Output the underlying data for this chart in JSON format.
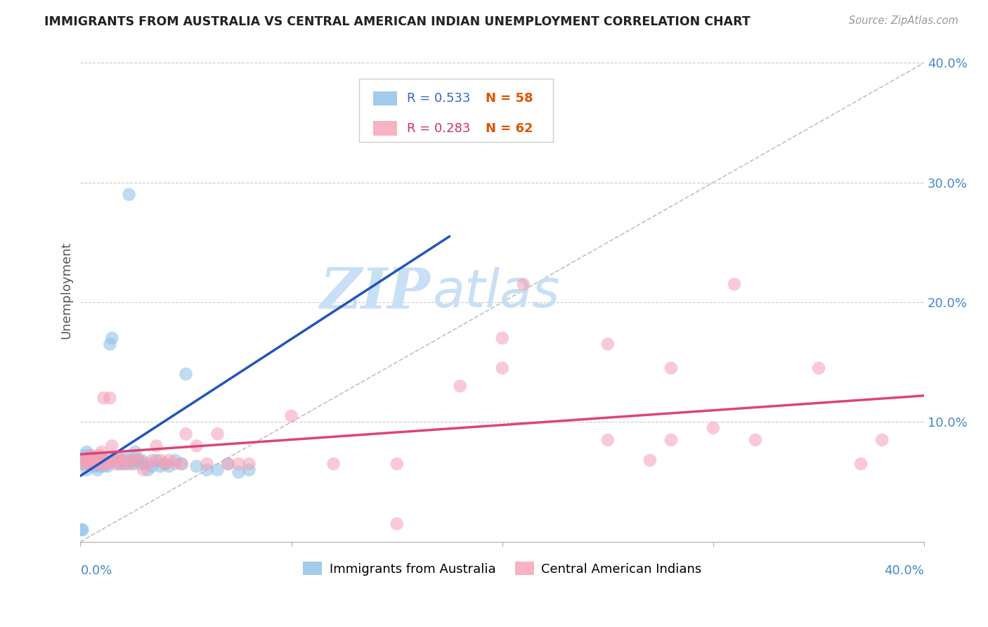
{
  "title": "IMMIGRANTS FROM AUSTRALIA VS CENTRAL AMERICAN INDIAN UNEMPLOYMENT CORRELATION CHART",
  "source": "Source: ZipAtlas.com",
  "ylabel": "Unemployment",
  "xlim": [
    0.0,
    0.4
  ],
  "ylim": [
    0.0,
    0.42
  ],
  "ytick_values": [
    0.1,
    0.2,
    0.3,
    0.4
  ],
  "ytick_labels": [
    "10.0%",
    "20.0%",
    "30.0%",
    "40.0%"
  ],
  "xtick_values": [
    0.0,
    0.1,
    0.2,
    0.3,
    0.4
  ],
  "grid_color": "#cccccc",
  "background_color": "#ffffff",
  "watermark_zip": "ZIP",
  "watermark_atlas": "atlas",
  "watermark_color": "#c8dff5",
  "legend_r1": "0.533",
  "legend_n1": "58",
  "legend_r2": "0.283",
  "legend_n2": "62",
  "blue_color": "#8bbfe8",
  "pink_color": "#f5a0b5",
  "trend_blue": "#2255bb",
  "trend_pink": "#dd4477",
  "diagonal_color": "#c0c0c0",
  "blue_label": "Immigrants from Australia",
  "pink_label": "Central American Indians",
  "aus_trend_x0": 0.0,
  "aus_trend_x1": 0.175,
  "aus_trend_y0": 0.055,
  "aus_trend_y1": 0.255,
  "cen_trend_x0": 0.0,
  "cen_trend_x1": 0.4,
  "cen_trend_y0": 0.073,
  "cen_trend_y1": 0.122,
  "australia_x": [
    0.001,
    0.002,
    0.002,
    0.003,
    0.003,
    0.004,
    0.004,
    0.005,
    0.005,
    0.006,
    0.006,
    0.007,
    0.007,
    0.008,
    0.008,
    0.009,
    0.009,
    0.01,
    0.01,
    0.011,
    0.011,
    0.012,
    0.013,
    0.013,
    0.014,
    0.015,
    0.016,
    0.017,
    0.018,
    0.019,
    0.02,
    0.021,
    0.022,
    0.023,
    0.024,
    0.025,
    0.026,
    0.027,
    0.028,
    0.029,
    0.03,
    0.032,
    0.034,
    0.036,
    0.038,
    0.04,
    0.042,
    0.045,
    0.048,
    0.05,
    0.055,
    0.06,
    0.065,
    0.07,
    0.075,
    0.08,
    0.001,
    0.0005
  ],
  "australia_y": [
    0.068,
    0.065,
    0.072,
    0.06,
    0.075,
    0.07,
    0.068,
    0.065,
    0.072,
    0.063,
    0.07,
    0.065,
    0.068,
    0.06,
    0.065,
    0.063,
    0.068,
    0.065,
    0.07,
    0.063,
    0.068,
    0.065,
    0.07,
    0.063,
    0.165,
    0.17,
    0.068,
    0.07,
    0.065,
    0.068,
    0.065,
    0.07,
    0.065,
    0.29,
    0.068,
    0.065,
    0.075,
    0.068,
    0.065,
    0.068,
    0.065,
    0.06,
    0.063,
    0.068,
    0.063,
    0.065,
    0.063,
    0.068,
    0.065,
    0.14,
    0.063,
    0.06,
    0.06,
    0.065,
    0.058,
    0.06,
    0.01,
    0.01
  ],
  "central_x": [
    0.001,
    0.002,
    0.003,
    0.004,
    0.005,
    0.005,
    0.006,
    0.007,
    0.008,
    0.009,
    0.01,
    0.01,
    0.011,
    0.012,
    0.013,
    0.014,
    0.015,
    0.016,
    0.017,
    0.018,
    0.019,
    0.02,
    0.022,
    0.024,
    0.026,
    0.028,
    0.03,
    0.032,
    0.034,
    0.036,
    0.038,
    0.04,
    0.042,
    0.045,
    0.048,
    0.05,
    0.055,
    0.06,
    0.065,
    0.07,
    0.075,
    0.08,
    0.1,
    0.12,
    0.15,
    0.18,
    0.21,
    0.25,
    0.27,
    0.28,
    0.3,
    0.32,
    0.35,
    0.37,
    0.38,
    0.28,
    0.15,
    0.2,
    0.2,
    0.25,
    0.31,
    0.01
  ],
  "central_y": [
    0.065,
    0.068,
    0.07,
    0.065,
    0.072,
    0.068,
    0.065,
    0.07,
    0.068,
    0.072,
    0.065,
    0.075,
    0.12,
    0.068,
    0.065,
    0.12,
    0.08,
    0.068,
    0.065,
    0.07,
    0.068,
    0.065,
    0.068,
    0.065,
    0.07,
    0.068,
    0.06,
    0.065,
    0.068,
    0.08,
    0.068,
    0.065,
    0.068,
    0.065,
    0.065,
    0.09,
    0.08,
    0.065,
    0.09,
    0.065,
    0.065,
    0.065,
    0.105,
    0.065,
    0.015,
    0.13,
    0.215,
    0.085,
    0.068,
    0.145,
    0.095,
    0.085,
    0.145,
    0.065,
    0.085,
    0.085,
    0.065,
    0.145,
    0.17,
    0.165,
    0.215,
    0.065
  ]
}
